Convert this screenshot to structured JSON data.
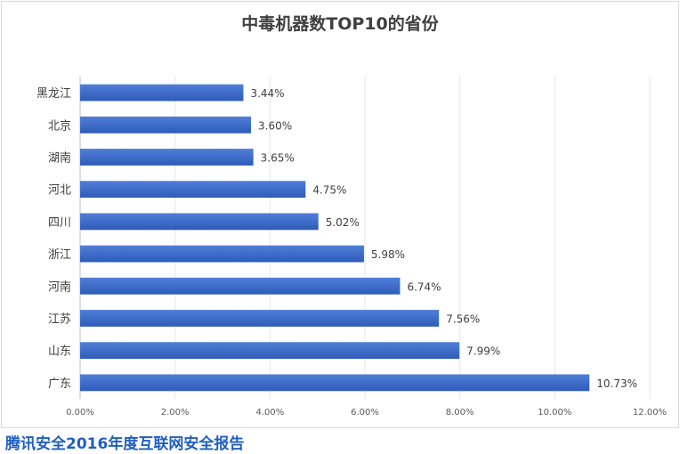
{
  "source_caption": "腾讯安全2016年度互联网安全报告",
  "colors": {
    "bar_start": "#2f5bb8",
    "bar_end": "#4f7fd8",
    "grid": "#e6e6e6"
  },
  "chart_data": {
    "type": "bar",
    "orientation": "horizontal",
    "title": "中毒机器数TOP10的省份",
    "xlabel": "",
    "ylabel": "",
    "xlim": [
      0,
      12
    ],
    "grid": true,
    "x_ticks": [
      "0.00%",
      "2.00%",
      "4.00%",
      "6.00%",
      "8.00%",
      "10.00%",
      "12.00%"
    ],
    "categories": [
      "黑龙江",
      "北京",
      "湖南",
      "河北",
      "四川",
      "浙江",
      "河南",
      "江苏",
      "山东",
      "广东"
    ],
    "values": [
      3.44,
      3.6,
      3.65,
      4.75,
      5.02,
      5.98,
      6.74,
      7.56,
      7.99,
      10.73
    ],
    "data_labels": [
      "3.44%",
      "3.60%",
      "3.65%",
      "4.75%",
      "5.02%",
      "5.98%",
      "6.74%",
      "7.56%",
      "7.99%",
      "10.73%"
    ]
  }
}
